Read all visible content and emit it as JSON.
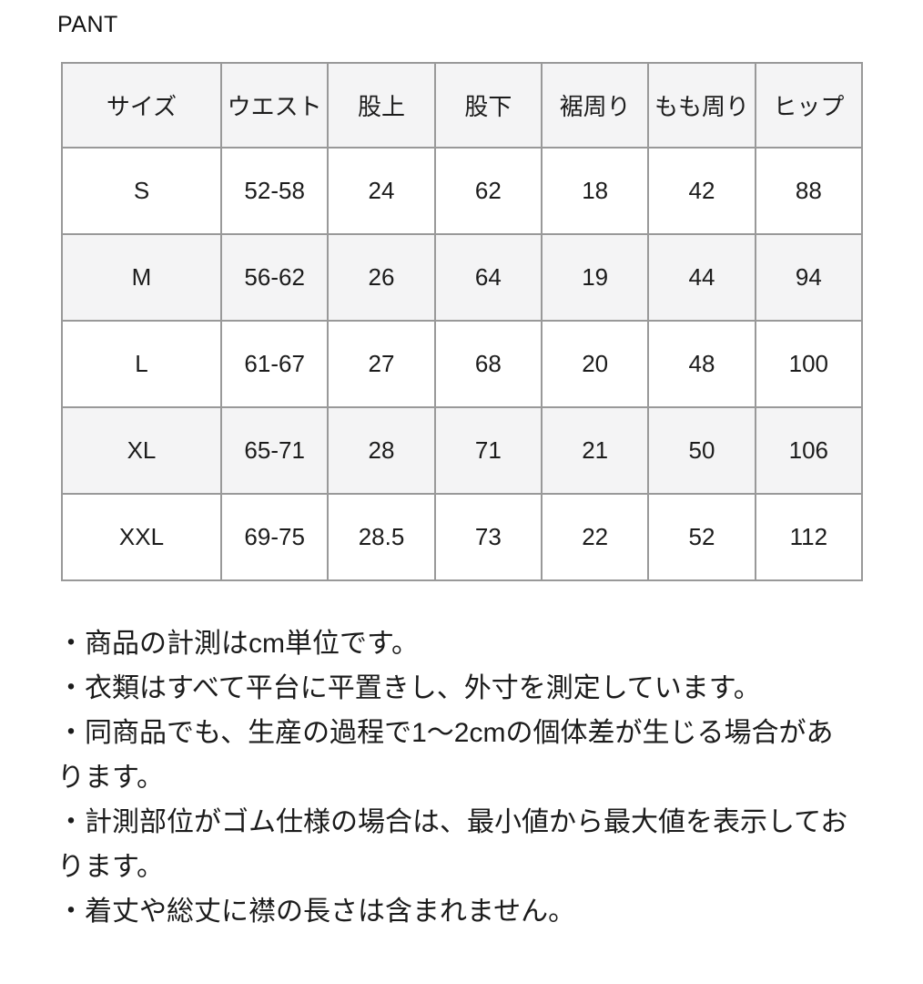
{
  "title": "PANT",
  "chart_data": {
    "type": "table",
    "title": "PANT",
    "columns": [
      "サイズ",
      "ウエスト",
      "股上",
      "股下",
      "裾周り",
      "もも周り",
      "ヒップ"
    ],
    "rows": [
      [
        "S",
        "52-58",
        "24",
        "62",
        "18",
        "42",
        "88"
      ],
      [
        "M",
        "56-62",
        "26",
        "64",
        "19",
        "44",
        "94"
      ],
      [
        "L",
        "61-67",
        "27",
        "68",
        "20",
        "48",
        "100"
      ],
      [
        "XL",
        "65-71",
        "28",
        "71",
        "21",
        "50",
        "106"
      ],
      [
        "XXL",
        "69-75",
        "28.5",
        "73",
        "22",
        "52",
        "112"
      ]
    ]
  },
  "notes": [
    "・商品の計測はcm単位です。",
    "・衣類はすべて平台に平置きし、外寸を測定しています。",
    "・同商品でも、生産の過程で1〜2cmの個体差が生じる場合があります。",
    "・計測部位がゴム仕様の場合は、最小値から最大値を表示しております。",
    "・着丈や総丈に襟の長さは含まれません。"
  ],
  "colors": {
    "border": "#999999",
    "header_bg": "#f4f4f5",
    "stripe_bg": "#f4f4f5",
    "row_bg": "#ffffff",
    "text": "#1c1c1c"
  }
}
